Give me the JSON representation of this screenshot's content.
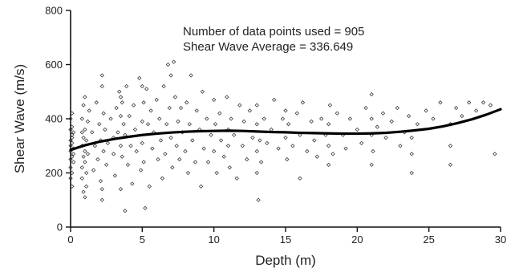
{
  "chart_data": {
    "type": "scatter",
    "title": "",
    "xlabel": "Depth (m)",
    "ylabel": "Shear Wave (m/s)",
    "xlim": [
      0,
      30
    ],
    "ylim": [
      0,
      800
    ],
    "x_ticks": [
      "0",
      "5",
      "10",
      "15",
      "20",
      "25",
      "30"
    ],
    "y_ticks": [
      "0",
      "200",
      "400",
      "600",
      "800"
    ],
    "grid": false,
    "legend": "none",
    "annotations": [
      "Number of data points used = 905",
      "Shear Wave Average = 336.649"
    ],
    "points_count": 905,
    "trend_line": {
      "x": [
        0,
        1,
        2,
        3,
        4,
        5,
        6,
        7,
        8,
        9,
        10,
        11,
        12,
        13,
        14,
        15,
        16,
        17,
        18,
        19,
        20,
        21,
        22,
        23,
        24,
        25,
        26,
        27,
        28,
        29,
        30
      ],
      "y": [
        285,
        302,
        315,
        325,
        333,
        340,
        345,
        349,
        352,
        354,
        355,
        356,
        355,
        353,
        351,
        350,
        348,
        347,
        346,
        345,
        345,
        346,
        348,
        352,
        357,
        363,
        372,
        384,
        398,
        415,
        435
      ]
    },
    "scatter_points": [
      [
        0.0,
        280
      ],
      [
        0.0,
        320
      ],
      [
        0.0,
        250
      ],
      [
        0.0,
        360
      ],
      [
        0.0,
        400
      ],
      [
        0.0,
        220
      ],
      [
        0.0,
        180
      ],
      [
        0.0,
        300
      ],
      [
        0.1,
        340
      ],
      [
        0.1,
        260
      ],
      [
        0.1,
        420
      ],
      [
        0.1,
        200
      ],
      [
        0.1,
        310
      ],
      [
        0.1,
        370
      ],
      [
        0.1,
        150
      ],
      [
        0.1,
        330
      ],
      [
        0.2,
        290
      ],
      [
        0.2,
        240
      ],
      [
        0.2,
        350
      ],
      [
        0.2,
        270
      ],
      [
        0.8,
        300
      ],
      [
        0.8,
        350
      ],
      [
        0.8,
        220
      ],
      [
        0.8,
        400
      ],
      [
        0.8,
        180
      ],
      [
        0.9,
        260
      ],
      [
        0.9,
        330
      ],
      [
        0.9,
        130
      ],
      [
        0.9,
        450
      ],
      [
        1.0,
        110
      ],
      [
        1.0,
        280
      ],
      [
        1.0,
        360
      ],
      [
        1.0,
        240
      ],
      [
        1.0,
        480
      ],
      [
        1.1,
        200
      ],
      [
        1.1,
        320
      ],
      [
        1.1,
        150
      ],
      [
        1.2,
        390
      ],
      [
        1.2,
        270
      ],
      [
        1.3,
        430
      ],
      [
        1.5,
        350
      ],
      [
        1.6,
        210
      ],
      [
        1.7,
        300
      ],
      [
        1.8,
        460
      ],
      [
        1.9,
        250
      ],
      [
        2.0,
        380
      ],
      [
        2.1,
        320
      ],
      [
        2.1,
        170
      ],
      [
        2.2,
        560
      ],
      [
        2.2,
        520
      ],
      [
        2.2,
        140
      ],
      [
        2.2,
        100
      ],
      [
        2.3,
        420
      ],
      [
        2.3,
        280
      ],
      [
        2.4,
        360
      ],
      [
        2.5,
        230
      ],
      [
        2.6,
        310
      ],
      [
        2.8,
        400
      ],
      [
        3.0,
        270
      ],
      [
        3.0,
        330
      ],
      [
        3.1,
        190
      ],
      [
        3.2,
        440
      ],
      [
        3.3,
        350
      ],
      [
        3.4,
        500
      ],
      [
        3.5,
        480
      ],
      [
        3.5,
        410
      ],
      [
        3.5,
        300
      ],
      [
        3.5,
        140
      ],
      [
        3.6,
        260
      ],
      [
        3.6,
        460
      ],
      [
        3.7,
        380
      ],
      [
        3.8,
        60
      ],
      [
        3.8,
        340
      ],
      [
        3.9,
        520
      ],
      [
        4.0,
        230
      ],
      [
        4.1,
        410
      ],
      [
        4.2,
        300
      ],
      [
        4.3,
        160
      ],
      [
        4.4,
        450
      ],
      [
        4.5,
        360
      ],
      [
        4.6,
        280
      ],
      [
        4.8,
        550
      ],
      [
        4.9,
        210
      ],
      [
        5.0,
        520
      ],
      [
        5.0,
        390
      ],
      [
        5.0,
        310
      ],
      [
        5.1,
        460
      ],
      [
        5.1,
        240
      ],
      [
        5.2,
        70
      ],
      [
        5.3,
        510
      ],
      [
        5.4,
        380
      ],
      [
        5.5,
        150
      ],
      [
        5.6,
        430
      ],
      [
        5.7,
        290
      ],
      [
        5.8,
        350
      ],
      [
        6.0,
        470
      ],
      [
        6.1,
        250
      ],
      [
        6.2,
        400
      ],
      [
        6.3,
        320
      ],
      [
        6.4,
        180
      ],
      [
        6.5,
        520
      ],
      [
        6.6,
        270
      ],
      [
        6.7,
        380
      ],
      [
        6.8,
        600
      ],
      [
        6.9,
        440
      ],
      [
        7.0,
        330
      ],
      [
        7.0,
        560
      ],
      [
        7.1,
        220
      ],
      [
        7.2,
        610
      ],
      [
        7.3,
        480
      ],
      [
        7.4,
        300
      ],
      [
        7.5,
        390
      ],
      [
        7.6,
        250
      ],
      [
        7.7,
        440
      ],
      [
        7.8,
        350
      ],
      [
        8.0,
        280
      ],
      [
        8.1,
        460
      ],
      [
        8.2,
        200
      ],
      [
        8.3,
        380
      ],
      [
        8.4,
        560
      ],
      [
        8.5,
        320
      ],
      [
        8.7,
        240
      ],
      [
        8.8,
        430
      ],
      [
        9.0,
        360
      ],
      [
        9.1,
        150
      ],
      [
        9.2,
        500
      ],
      [
        9.3,
        290
      ],
      [
        9.5,
        400
      ],
      [
        9.6,
        240
      ],
      [
        9.8,
        340
      ],
      [
        10.0,
        280
      ],
      [
        10.0,
        470
      ],
      [
        10.1,
        380
      ],
      [
        10.2,
        200
      ],
      [
        10.4,
        420
      ],
      [
        10.5,
        320
      ],
      [
        10.7,
        260
      ],
      [
        10.9,
        480
      ],
      [
        11.0,
        360
      ],
      [
        11.0,
        300
      ],
      [
        11.1,
        220
      ],
      [
        11.2,
        400
      ],
      [
        11.4,
        340
      ],
      [
        11.6,
        180
      ],
      [
        11.8,
        450
      ],
      [
        12.0,
        300
      ],
      [
        12.1,
        390
      ],
      [
        12.3,
        250
      ],
      [
        12.5,
        430
      ],
      [
        12.7,
        330
      ],
      [
        13.0,
        280
      ],
      [
        13.0,
        380
      ],
      [
        13.0,
        200
      ],
      [
        13.0,
        450
      ],
      [
        13.1,
        100
      ],
      [
        13.2,
        320
      ],
      [
        13.3,
        240
      ],
      [
        13.5,
        400
      ],
      [
        13.7,
        310
      ],
      [
        14.0,
        360
      ],
      [
        14.2,
        470
      ],
      [
        14.5,
        290
      ],
      [
        14.8,
        400
      ],
      [
        15.0,
        330
      ],
      [
        15.0,
        430
      ],
      [
        15.1,
        250
      ],
      [
        15.2,
        380
      ],
      [
        15.5,
        300
      ],
      [
        15.8,
        420
      ],
      [
        16.0,
        180
      ],
      [
        16.0,
        340
      ],
      [
        16.2,
        460
      ],
      [
        16.5,
        280
      ],
      [
        16.8,
        390
      ],
      [
        17.0,
        320
      ],
      [
        17.2,
        260
      ],
      [
        17.5,
        400
      ],
      [
        17.8,
        340
      ],
      [
        18.0,
        230
      ],
      [
        18.0,
        300
      ],
      [
        18.0,
        380
      ],
      [
        18.1,
        450
      ],
      [
        18.3,
        270
      ],
      [
        18.6,
        420
      ],
      [
        19.0,
        340
      ],
      [
        19.2,
        290
      ],
      [
        19.5,
        400
      ],
      [
        20.0,
        360
      ],
      [
        20.3,
        310
      ],
      [
        20.6,
        440
      ],
      [
        21.0,
        230
      ],
      [
        21.0,
        340
      ],
      [
        21.0,
        400
      ],
      [
        21.0,
        490
      ],
      [
        21.1,
        280
      ],
      [
        21.4,
        370
      ],
      [
        21.8,
        420
      ],
      [
        22.0,
        330
      ],
      [
        22.4,
        390
      ],
      [
        22.8,
        440
      ],
      [
        23.0,
        300
      ],
      [
        23.3,
        350
      ],
      [
        23.6,
        410
      ],
      [
        23.8,
        200
      ],
      [
        23.8,
        270
      ],
      [
        23.8,
        330
      ],
      [
        24.2,
        380
      ],
      [
        24.8,
        430
      ],
      [
        25.3,
        400
      ],
      [
        25.8,
        460
      ],
      [
        26.5,
        230
      ],
      [
        26.5,
        300
      ],
      [
        26.5,
        380
      ],
      [
        26.9,
        440
      ],
      [
        27.3,
        410
      ],
      [
        27.8,
        460
      ],
      [
        28.3,
        430
      ],
      [
        28.8,
        460
      ],
      [
        29.3,
        450
      ],
      [
        29.6,
        270
      ]
    ]
  }
}
